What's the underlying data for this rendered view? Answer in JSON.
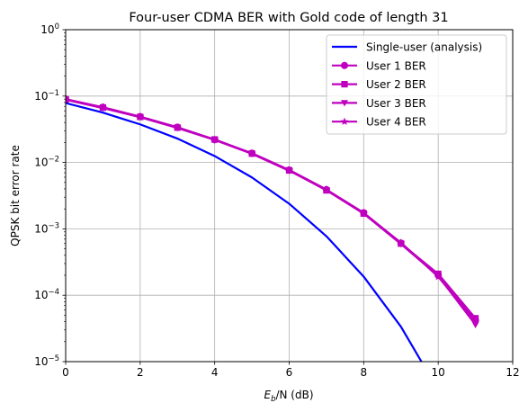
{
  "chart_data": {
    "type": "line",
    "title": "Four-user CDMA BER with Gold code of length 31",
    "xlabel_main": "E",
    "xlabel_sub": "b",
    "xlabel_rest": "/N (dB)",
    "ylabel": "QPSK bit error rate",
    "y_scale": "log",
    "xlim": [
      0,
      12
    ],
    "ylim": [
      1e-05,
      1
    ],
    "x_ticks": [
      0,
      2,
      4,
      6,
      8,
      10,
      12
    ],
    "x_tick_labels": [
      "0",
      "2",
      "4",
      "6",
      "8",
      "10",
      "12"
    ],
    "y_ticks": [
      1e-05,
      0.0001,
      0.001,
      0.01,
      0.1,
      1
    ],
    "y_tick_base": "10",
    "y_tick_exponents": [
      "−5",
      "−4",
      "−3",
      "−2",
      "−1",
      "0"
    ],
    "grid": true,
    "legend_position": "top-right",
    "series": [
      {
        "name": "Single-user (analysis)",
        "color": "#0000ff",
        "marker": "none",
        "x": [
          0,
          1,
          2,
          3,
          4,
          5,
          6,
          7,
          8,
          9,
          9.55
        ],
        "y": [
          0.0786,
          0.0563,
          0.0375,
          0.0229,
          0.0125,
          0.00595,
          0.00239,
          0.000773,
          0.000191,
          3.36e-05,
          1e-05
        ]
      },
      {
        "name": "User 1 BER",
        "color": "#bf00bf",
        "marker": "circle",
        "x": [
          0,
          1,
          2,
          3,
          4,
          5,
          6,
          7,
          8,
          9,
          10,
          11
        ],
        "y": [
          0.09,
          0.068,
          0.049,
          0.034,
          0.022,
          0.0138,
          0.0077,
          0.0039,
          0.00175,
          0.00061,
          0.0002,
          4.2e-05
        ]
      },
      {
        "name": "User 2 BER",
        "color": "#bf00bf",
        "marker": "square",
        "x": [
          0,
          1,
          2,
          3,
          4,
          5,
          6,
          7,
          8,
          9,
          10,
          11
        ],
        "y": [
          0.089,
          0.067,
          0.0485,
          0.0335,
          0.0222,
          0.0136,
          0.0076,
          0.0038,
          0.0017,
          0.0006,
          0.00021,
          4.5e-05
        ]
      },
      {
        "name": "User 3 BER",
        "color": "#bf00bf",
        "marker": "triangle-down",
        "x": [
          0,
          1,
          2,
          3,
          4,
          5,
          6,
          7,
          8,
          9,
          10,
          11
        ],
        "y": [
          0.088,
          0.066,
          0.048,
          0.033,
          0.0218,
          0.0135,
          0.0075,
          0.00385,
          0.0017,
          0.00059,
          0.000195,
          3.6e-05
        ]
      },
      {
        "name": "User 4 BER",
        "color": "#bf00bf",
        "marker": "star",
        "x": [
          0,
          1,
          2,
          3,
          4,
          5,
          6,
          7,
          8,
          9,
          10,
          11
        ],
        "y": [
          0.0895,
          0.0675,
          0.0488,
          0.0338,
          0.0221,
          0.0137,
          0.0077,
          0.0039,
          0.00172,
          0.00062,
          0.00019,
          4e-05
        ]
      }
    ]
  }
}
